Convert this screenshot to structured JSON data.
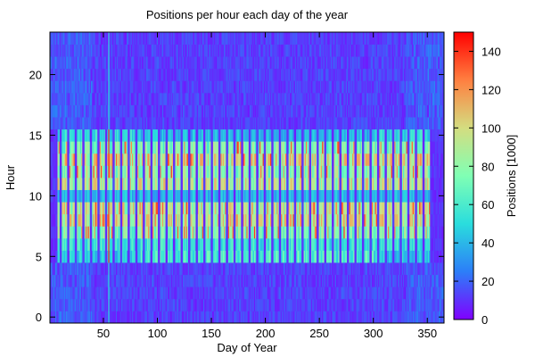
{
  "chart_data": {
    "type": "heatmap",
    "title": "Positions per hour each day of the year",
    "xlabel": "Day of Year",
    "ylabel": "Hour",
    "colorbar_label": "Positions [1000]",
    "xlim": [
      1,
      365
    ],
    "ylim": [
      0,
      23
    ],
    "clim": [
      0,
      150
    ],
    "x_ticks": [
      50,
      100,
      150,
      200,
      250,
      300,
      350
    ],
    "y_ticks": [
      0,
      5,
      10,
      15,
      20
    ],
    "colorbar_ticks": [
      0,
      20,
      40,
      60,
      80,
      100,
      120,
      140
    ],
    "colormap": "rainbow",
    "colormap_stops": [
      "#8000ff",
      "#2c7ef8",
      "#2adddd",
      "#80ffb4",
      "#d4dd80",
      "#ff7f40",
      "#ff0000"
    ],
    "background_level": 5,
    "weekday_levels_by_hour": [
      5,
      5,
      5,
      5,
      8,
      45,
      55,
      75,
      95,
      90,
      40,
      90,
      80,
      95,
      75,
      40,
      10,
      8,
      6,
      6,
      6,
      5,
      5,
      5
    ],
    "summer_schedule_days": [
      85,
      300
    ],
    "hot_spot_day": 55,
    "hot_spot_hours": [
      7,
      8,
      9,
      12,
      13,
      14
    ],
    "hot_spot_level": 140,
    "bright_column_day": 55,
    "bright_column_level": 50,
    "grid": false
  }
}
